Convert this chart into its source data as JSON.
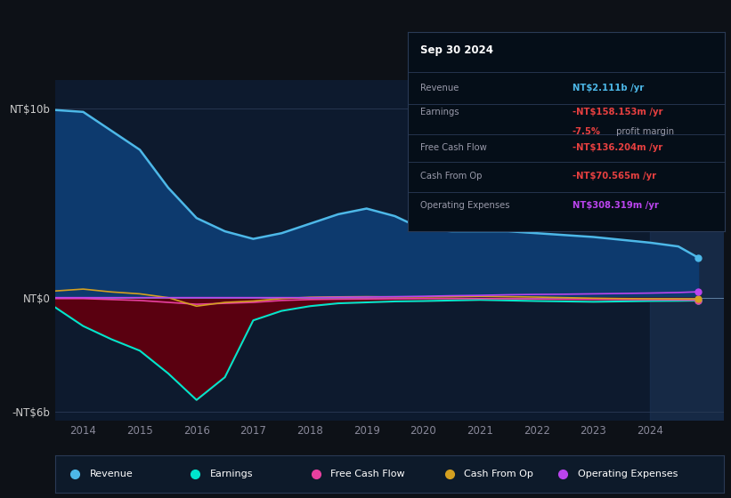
{
  "bg_color": "#0d1117",
  "plot_bg_color": "#0d1a2e",
  "years": [
    2013.5,
    2014.0,
    2014.5,
    2015.0,
    2015.5,
    2016.0,
    2016.5,
    2017.0,
    2017.5,
    2018.0,
    2018.5,
    2019.0,
    2019.5,
    2020.0,
    2020.5,
    2021.0,
    2021.5,
    2022.0,
    2022.5,
    2023.0,
    2023.5,
    2024.0,
    2024.5,
    2024.85
  ],
  "revenue": [
    9.9,
    9.8,
    8.8,
    7.8,
    5.8,
    4.2,
    3.5,
    3.1,
    3.4,
    3.9,
    4.4,
    4.7,
    4.3,
    3.6,
    3.5,
    3.5,
    3.5,
    3.4,
    3.3,
    3.2,
    3.05,
    2.9,
    2.7,
    2.111
  ],
  "earnings": [
    -0.5,
    -1.5,
    -2.2,
    -2.8,
    -4.0,
    -5.4,
    -4.2,
    -1.2,
    -0.7,
    -0.45,
    -0.3,
    -0.25,
    -0.2,
    -0.18,
    -0.15,
    -0.12,
    -0.15,
    -0.18,
    -0.2,
    -0.22,
    -0.2,
    -0.18,
    -0.17,
    -0.158
  ],
  "free_cash_flow": [
    -0.05,
    -0.05,
    -0.1,
    -0.15,
    -0.25,
    -0.35,
    -0.3,
    -0.25,
    -0.15,
    -0.1,
    -0.08,
    -0.07,
    -0.06,
    -0.05,
    -0.05,
    -0.05,
    -0.06,
    -0.07,
    -0.08,
    -0.09,
    -0.1,
    -0.11,
    -0.12,
    -0.136
  ],
  "cash_from_op": [
    0.35,
    0.45,
    0.3,
    0.2,
    0.0,
    -0.45,
    -0.25,
    -0.18,
    -0.05,
    0.02,
    0.04,
    0.05,
    0.04,
    0.04,
    0.05,
    0.07,
    0.05,
    0.03,
    0.0,
    -0.03,
    -0.05,
    -0.06,
    -0.065,
    -0.0706
  ],
  "operating_expenses": [
    0.0,
    0.0,
    0.0,
    0.0,
    0.0,
    0.0,
    0.0,
    0.0,
    0.0,
    0.0,
    0.02,
    0.03,
    0.05,
    0.07,
    0.1,
    0.12,
    0.15,
    0.17,
    0.18,
    0.2,
    0.22,
    0.24,
    0.27,
    0.308
  ],
  "revenue_color": "#4db8e8",
  "earnings_color": "#00e5cc",
  "earnings_fill_color": "#5a0010",
  "free_cash_flow_color": "#e840a0",
  "cash_from_op_color": "#d4a020",
  "operating_expenses_color": "#bb44ee",
  "revenue_area_color": "#0d3a6e",
  "ylim_min": -6.5,
  "ylim_max": 11.5,
  "ytick_vals": [
    -6,
    0,
    10
  ],
  "ytick_labels": [
    "-NT$6b",
    "NT$0",
    "NT$10b"
  ],
  "xtick_vals": [
    2014,
    2015,
    2016,
    2017,
    2018,
    2019,
    2020,
    2021,
    2022,
    2023,
    2024
  ],
  "xlim_min": 2013.5,
  "xlim_max": 2025.3,
  "highlight_start": 2024.0,
  "highlight_end": 2025.3,
  "highlight_color": "#1a3050",
  "title": "Sep 30 2024",
  "row1_label": "Revenue",
  "row1_value": "NT$2.111b",
  "row1_value_color": "#4db8e8",
  "row1_suffix": " /yr",
  "row2_label": "Earnings",
  "row2_value": "-NT$158.153m",
  "row2_value_color": "#e84040",
  "row2_suffix": " /yr",
  "row2b_pct": "-7.5%",
  "row2b_text": " profit margin",
  "row2b_pct_color": "#e84040",
  "row3_label": "Free Cash Flow",
  "row3_value": "-NT$136.204m",
  "row3_value_color": "#e84040",
  "row3_suffix": " /yr",
  "row4_label": "Cash From Op",
  "row4_value": "-NT$70.565m",
  "row4_value_color": "#e84040",
  "row4_suffix": " /yr",
  "row5_label": "Operating Expenses",
  "row5_value": "NT$308.319m",
  "row5_value_color": "#bb44ee",
  "row5_suffix": " /yr",
  "legend_items": [
    {
      "color": "#4db8e8",
      "label": "Revenue"
    },
    {
      "color": "#00e5cc",
      "label": "Earnings"
    },
    {
      "color": "#e840a0",
      "label": "Free Cash Flow"
    },
    {
      "color": "#d4a020",
      "label": "Cash From Op"
    },
    {
      "color": "#bb44ee",
      "label": "Operating Expenses"
    }
  ]
}
